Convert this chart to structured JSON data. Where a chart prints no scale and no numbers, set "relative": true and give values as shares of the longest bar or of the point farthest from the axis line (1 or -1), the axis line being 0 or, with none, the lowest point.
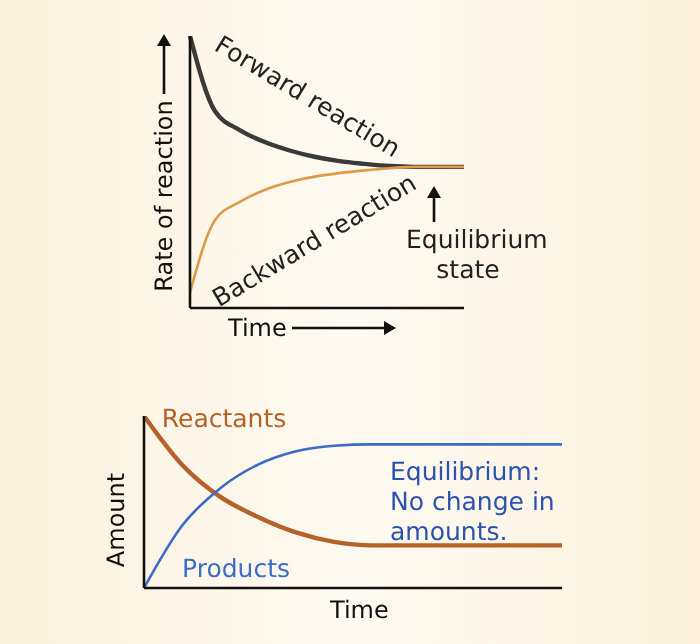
{
  "chart_data": [
    {
      "type": "line",
      "relative": true,
      "ylabel": "Rate of reaction",
      "xlabel": "Time",
      "categories": [
        null,
        null,
        null,
        null,
        null,
        null,
        null,
        null,
        null,
        null,
        null,
        null
      ],
      "series": [
        {
          "name": "Forward reaction",
          "color": "#3a3a3a",
          "values": [
            1.0,
            0.724,
            0.654,
            0.61,
            0.579,
            0.556,
            0.54,
            0.53,
            0.522,
            0.519,
            0.519,
            0.519
          ]
        },
        {
          "name": "Backward reaction",
          "color": "#e09a45",
          "values": [
            0.057,
            0.323,
            0.39,
            0.434,
            0.463,
            0.483,
            0.496,
            0.506,
            0.514,
            0.519,
            0.519,
            0.519
          ]
        }
      ],
      "annotations": [
        "Equilibrium state"
      ],
      "grid": false,
      "legend": false,
      "marker": "none",
      "line_style": "solid"
    },
    {
      "type": "line",
      "relative": true,
      "ylabel": "Amount",
      "xlabel": "Time",
      "categories": [
        null,
        null,
        null,
        null,
        null,
        null,
        null,
        null,
        null,
        null,
        null,
        null
      ],
      "series": [
        {
          "name": "Reactants",
          "color": "#b4612a",
          "values": [
            1.0,
            0.717,
            0.531,
            0.413,
            0.323,
            0.268,
            0.248,
            0.248,
            0.248,
            0.248,
            0.248,
            0.248
          ]
        },
        {
          "name": "Products",
          "color": "#3a6cc8",
          "values": [
            0,
            0.362,
            0.579,
            0.717,
            0.795,
            0.827,
            0.835,
            0.835,
            0.835,
            0.835,
            0.835,
            0.835
          ]
        }
      ],
      "annotations": [
        "Equilibrium:\nNo change in amounts."
      ],
      "grid": false,
      "legend": false,
      "marker": "none",
      "line_style": "solid"
    }
  ]
}
